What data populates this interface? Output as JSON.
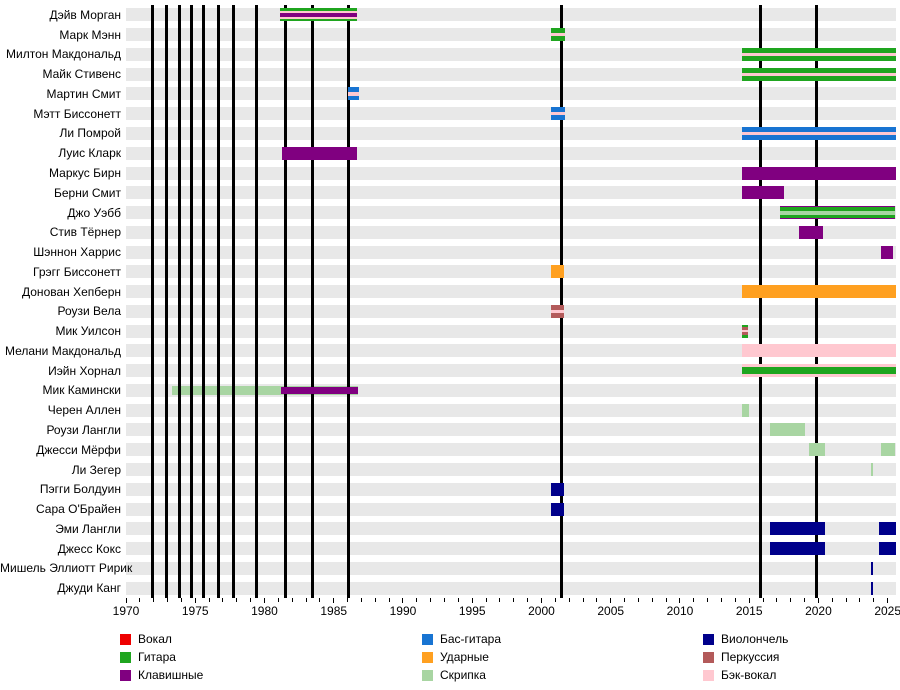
{
  "chart_data": {
    "type": "bar",
    "subtype": "membership-timeline-gantt",
    "title": "",
    "xlabel": "",
    "ylabel": "",
    "x_axis": {
      "min": 1970,
      "max": 2025.6,
      "major_tick_labels": [
        "1970",
        "1975",
        "1980",
        "1985",
        "1990",
        "1995",
        "2000",
        "2005",
        "2010",
        "2015",
        "2020",
        "2025"
      ],
      "minor_tick_every_years": 1
    },
    "legend_position": "bottom",
    "grid": "horizontal-row-bands",
    "roles": {
      "vocals": {
        "label": "Вокал",
        "color": "#ee0000"
      },
      "guitar": {
        "label": "Гитара",
        "color": "#1fa51f"
      },
      "keys": {
        "label": "Клавишные",
        "color": "#800080"
      },
      "bass": {
        "label": "Бас-гитара",
        "color": "#1874d2"
      },
      "drums": {
        "label": "Ударные",
        "color": "#ffa020"
      },
      "violin": {
        "label": "Скрипка",
        "color": "#a8d5a2"
      },
      "cello": {
        "label": "Виолончель",
        "color": "#00008b"
      },
      "percussion": {
        "label": "Перкуссия",
        "color": "#b35a5a"
      },
      "backing": {
        "label": "Бэк-вокал",
        "color": "#ffc8d0"
      }
    },
    "legend_order": [
      "vocals",
      "guitar",
      "keys",
      "bass",
      "drums",
      "violin",
      "cello",
      "percussion",
      "backing"
    ],
    "event_lines_years": [
      1971.9,
      1972.95,
      1973.85,
      1974.75,
      1975.6,
      1976.65,
      1977.75,
      1979.4,
      1981.5,
      1983.45,
      1986.1,
      2001.45,
      2015.85,
      2019.85
    ],
    "members": [
      {
        "name": "Дэйв Морган",
        "bars": [
          {
            "from": 1981.1,
            "to": 1986.7,
            "stripes": [
              "guitar",
              "backing",
              "keys",
              "backing",
              "guitar"
            ],
            "weights": [
              2,
              2,
              3,
              2,
              2
            ]
          }
        ]
      },
      {
        "name": "Марк Мэнн",
        "bars": [
          {
            "from": 2000.7,
            "to": 2001.7,
            "stripes": [
              "guitar",
              "backing",
              "guitar"
            ],
            "weights": [
              3,
              2,
              3
            ]
          }
        ]
      },
      {
        "name": "Милтон Макдональд",
        "bars": [
          {
            "from": 2014.5,
            "to": 2025.6,
            "stripes": [
              "guitar",
              "backing",
              "guitar"
            ],
            "weights": [
              3,
              2,
              3
            ]
          }
        ]
      },
      {
        "name": "Майк Стивенс",
        "bars": [
          {
            "from": 2014.5,
            "to": 2025.6,
            "stripes": [
              "guitar",
              "backing",
              "guitar"
            ],
            "weights": [
              3,
              2,
              3
            ]
          }
        ]
      },
      {
        "name": "Мартин Смит",
        "bars": [
          {
            "from": 1986.0,
            "to": 1986.8,
            "stripes": [
              "bass",
              "backing",
              "bass"
            ],
            "weights": [
              3,
              2,
              3
            ]
          }
        ]
      },
      {
        "name": "Мэтт Биссонетт",
        "bars": [
          {
            "from": 2000.7,
            "to": 2001.7,
            "stripes": [
              "bass",
              "backing",
              "bass"
            ],
            "weights": [
              3,
              2,
              3
            ]
          }
        ]
      },
      {
        "name": "Ли Помрой",
        "bars": [
          {
            "from": 2014.5,
            "to": 2025.6,
            "stripes": [
              "bass",
              "backing",
              "bass"
            ],
            "weights": [
              3,
              2,
              3
            ]
          }
        ]
      },
      {
        "name": "Луис Кларк",
        "bars": [
          {
            "from": 1981.3,
            "to": 1986.7,
            "stripes": [
              "keys"
            ]
          }
        ]
      },
      {
        "name": "Маркус Бирн",
        "bars": [
          {
            "from": 2014.5,
            "to": 2025.6,
            "stripes": [
              "keys"
            ]
          }
        ]
      },
      {
        "name": "Берни Смит",
        "bars": [
          {
            "from": 2014.5,
            "to": 2017.5,
            "stripes": [
              "keys"
            ]
          }
        ]
      },
      {
        "name": "Джо Уэбб",
        "bars": [
          {
            "from": 2017.2,
            "to": 2025.5,
            "stripes": [
              "keys",
              "guitar",
              "violin",
              "guitar",
              "keys"
            ],
            "weights": [
              1,
              2.5,
              3,
              2.5,
              1
            ]
          }
        ]
      },
      {
        "name": "Стив Тёрнер",
        "bars": [
          {
            "from": 2018.6,
            "to": 2020.3,
            "stripes": [
              "keys"
            ]
          }
        ]
      },
      {
        "name": "Шэннон Харрис",
        "bars": [
          {
            "from": 2024.5,
            "to": 2025.4,
            "stripes": [
              "keys"
            ]
          }
        ]
      },
      {
        "name": "Грэгг Биссонетт",
        "bars": [
          {
            "from": 2000.7,
            "to": 2001.6,
            "stripes": [
              "drums"
            ]
          }
        ]
      },
      {
        "name": "Донован Хепберн",
        "bars": [
          {
            "from": 2014.5,
            "to": 2025.6,
            "stripes": [
              "drums"
            ]
          }
        ]
      },
      {
        "name": "Роузи Вела",
        "bars": [
          {
            "from": 2000.7,
            "to": 2001.6,
            "stripes": [
              "percussion",
              "backing",
              "percussion"
            ],
            "weights": [
              3,
              2,
              3
            ]
          }
        ]
      },
      {
        "name": "Мик Уилсон",
        "bars": [
          {
            "from": 2014.5,
            "to": 2014.95,
            "stripes": [
              "guitar",
              "percussion",
              "backing",
              "percussion",
              "guitar"
            ]
          }
        ]
      },
      {
        "name": "Мелани Макдональд",
        "bars": [
          {
            "from": 2014.5,
            "to": 2025.6,
            "stripes": [
              "backing"
            ]
          }
        ]
      },
      {
        "name": "Иэйн Хорнал",
        "bars": [
          {
            "from": 2014.5,
            "to": 2025.6,
            "stripes": [
              "backing",
              "guitar",
              "backing"
            ],
            "weights": [
              1,
              2,
              1
            ]
          }
        ]
      },
      {
        "name": "Мик Камински",
        "bars": [
          {
            "from": 1973.3,
            "to": 1986.75,
            "stripes": [
              "violin"
            ],
            "h": 9,
            "behind": true
          },
          {
            "from": 1981.2,
            "to": 1986.75,
            "stripes": [
              "keys"
            ],
            "h": 7,
            "overlay": true
          }
        ]
      },
      {
        "name": "Черен Аллен",
        "bars": [
          {
            "from": 2014.5,
            "to": 2015.0,
            "stripes": [
              "violin"
            ]
          }
        ]
      },
      {
        "name": "Роузи Лангли",
        "bars": [
          {
            "from": 2016.5,
            "to": 2019.0,
            "stripes": [
              "violin"
            ]
          }
        ]
      },
      {
        "name": "Джесси Мёрфи",
        "bars": [
          {
            "from": 2019.3,
            "to": 2020.45,
            "stripes": [
              "violin"
            ]
          },
          {
            "from": 2024.5,
            "to": 2025.5,
            "stripes": [
              "violin"
            ]
          }
        ]
      },
      {
        "name": "Ли Зегер",
        "bars": [
          {
            "from": 2023.8,
            "to": 2023.97,
            "stripes": [
              "violin"
            ]
          }
        ]
      },
      {
        "name": "Пэгги Болдуин",
        "bars": [
          {
            "from": 2000.7,
            "to": 2001.6,
            "stripes": [
              "cello"
            ]
          }
        ]
      },
      {
        "name": "Сара О'Брайен",
        "bars": [
          {
            "from": 2000.7,
            "to": 2001.6,
            "stripes": [
              "cello"
            ]
          }
        ]
      },
      {
        "name": "Эми Лангли",
        "bars": [
          {
            "from": 2016.5,
            "to": 2020.45,
            "stripes": [
              "cello"
            ]
          },
          {
            "from": 2024.4,
            "to": 2025.6,
            "stripes": [
              "cello"
            ]
          }
        ]
      },
      {
        "name": "Джесс Кокс",
        "bars": [
          {
            "from": 2016.5,
            "to": 2020.45,
            "stripes": [
              "cello"
            ]
          },
          {
            "from": 2024.4,
            "to": 2025.6,
            "stripes": [
              "cello"
            ]
          }
        ]
      },
      {
        "name": "Мишель Эллиотт Ририк",
        "bars": [
          {
            "from": 2023.8,
            "to": 2023.97,
            "stripes": [
              "cello"
            ]
          }
        ]
      },
      {
        "name": "Джуди Канг",
        "bars": [
          {
            "from": 2023.8,
            "to": 2023.97,
            "stripes": [
              "cello"
            ]
          }
        ]
      }
    ]
  }
}
